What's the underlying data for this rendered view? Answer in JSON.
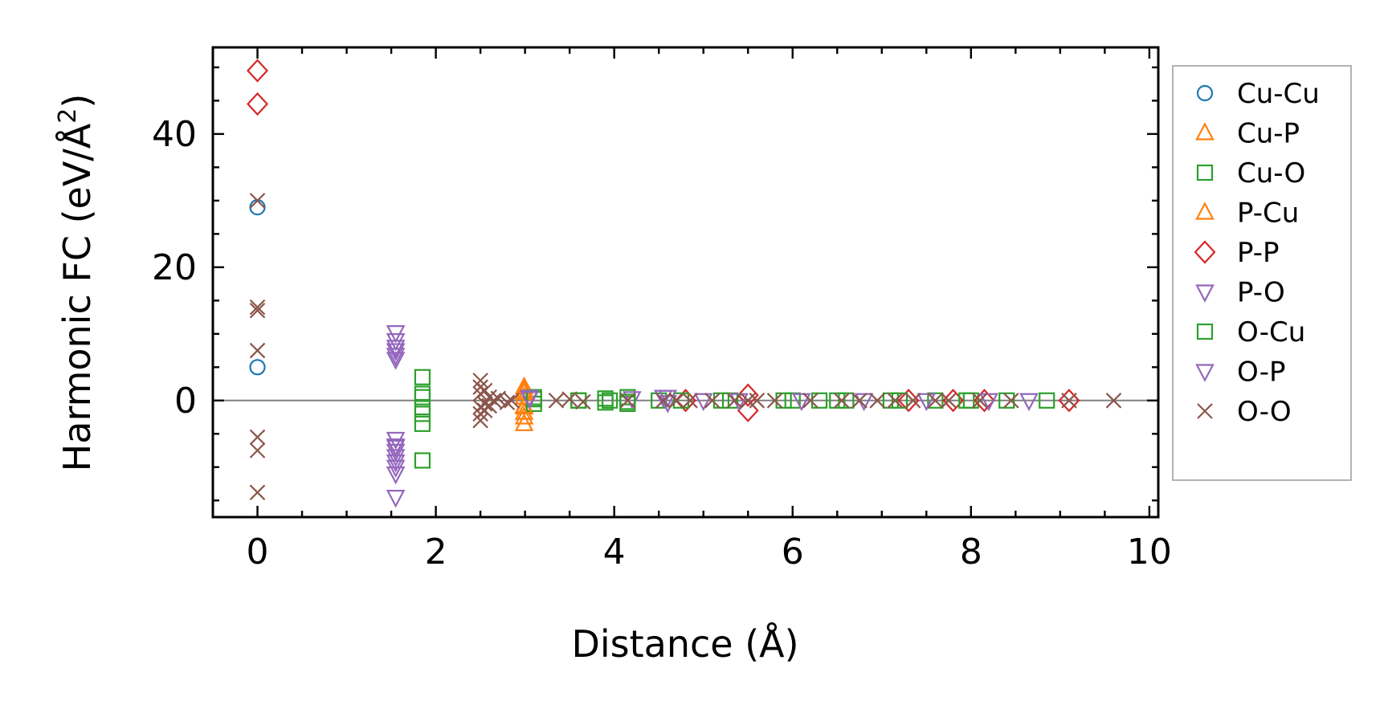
{
  "chart_data": {
    "type": "scatter",
    "xlabel": "Distance (Å)",
    "ylabel_main": "Harmonic FC (eV/Å",
    "ylabel_sup": "2",
    "ylabel_end": ")",
    "xlim": [
      -0.5,
      10.1
    ],
    "ylim": [
      -17.5,
      53
    ],
    "xticks": [
      0,
      2,
      4,
      6,
      8,
      10
    ],
    "yticks": [
      0,
      20,
      40
    ],
    "zero_line": true,
    "legend_position": "right, outside plot",
    "series": [
      {
        "name": "Cu-Cu",
        "color": "#1f77b4",
        "marker": "circle",
        "x": [
          0,
          0
        ],
        "y": [
          29,
          5
        ]
      },
      {
        "name": "Cu-P",
        "color": "#ff7f0e",
        "marker": "triangle-up",
        "x": [
          2.99,
          2.99,
          2.99,
          2.99,
          2.99,
          2.99
        ],
        "y": [
          2.0,
          1.2,
          0.5,
          -0.8,
          -1.8,
          -3.5
        ]
      },
      {
        "name": "Cu-O",
        "color": "#2ca02c",
        "marker": "square",
        "x": [
          1.85,
          1.85,
          1.85,
          1.85,
          1.85,
          3.1,
          3.1,
          3.6,
          3.9,
          3.9,
          4.15,
          4.15,
          4.5,
          5.2,
          5.9,
          6.3,
          6.6,
          7.1,
          7.6,
          8.0,
          8.4,
          8.85
        ],
        "y": [
          3.5,
          1.0,
          -1.0,
          -3.5,
          -9.0,
          0.5,
          -0.5,
          0,
          0.3,
          -0.3,
          0.5,
          -0.5,
          0,
          0,
          0,
          0,
          0,
          0,
          0,
          0,
          0,
          0
        ]
      },
      {
        "name": "P-Cu",
        "color": "#ff7f0e",
        "marker": "triangle-up",
        "x": [
          2.99,
          2.99,
          2.99
        ],
        "y": [
          1.5,
          -1.0,
          -2.5
        ]
      },
      {
        "name": "P-P",
        "color": "#d62728",
        "marker": "diamond",
        "x": [
          0,
          0,
          4.8,
          5.5,
          5.5,
          7.3,
          7.8,
          8.15,
          9.1
        ],
        "y": [
          49.5,
          44.5,
          0,
          0.8,
          -1.5,
          0,
          0,
          0,
          0
        ]
      },
      {
        "name": "P-O",
        "color": "#9467bd",
        "marker": "triangle-down",
        "x": [
          1.55,
          1.55,
          1.55,
          1.55,
          1.55,
          1.55,
          1.55,
          1.55,
          1.55,
          1.55,
          1.55,
          1.55,
          1.55,
          3.05,
          4.2,
          4.55,
          4.6
        ],
        "y": [
          10.2,
          9.0,
          7.5,
          6.8,
          6.2,
          -5.8,
          -6.8,
          -7.6,
          -8.4,
          -9.2,
          -10.0,
          -11.0,
          -14.5,
          0.5,
          0.3,
          0.5,
          -0.3
        ]
      },
      {
        "name": "O-Cu",
        "color": "#2ca02c",
        "marker": "square",
        "x": [
          1.85,
          1.85,
          3.1,
          3.6,
          3.95,
          4.15,
          4.75,
          5.3,
          6.0,
          6.5,
          7.2,
          7.95
        ],
        "y": [
          0.5,
          -2.0,
          0.2,
          0,
          0,
          -0.2,
          0,
          0,
          0,
          0,
          0,
          0
        ]
      },
      {
        "name": "O-P",
        "color": "#9467bd",
        "marker": "triangle-down",
        "x": [
          1.55,
          1.55,
          3.05,
          4.6,
          5.0,
          5.4,
          6.1,
          6.8,
          7.5,
          8.2,
          8.65
        ],
        "y": [
          8.0,
          -7.0,
          0.3,
          0.5,
          0,
          0,
          0,
          0,
          0,
          0,
          0
        ]
      },
      {
        "name": "O-O",
        "color": "#8c564b",
        "marker": "x",
        "x": [
          0,
          0,
          0,
          0,
          0,
          0,
          0,
          2.5,
          2.5,
          2.5,
          2.5,
          2.5,
          2.5,
          2.55,
          2.55,
          2.55,
          2.6,
          2.6,
          2.65,
          2.7,
          2.8,
          2.85,
          3.35,
          3.5,
          3.65,
          4.15,
          4.55,
          4.7,
          4.85,
          5.1,
          5.35,
          5.5,
          5.6,
          5.8,
          6.2,
          6.55,
          6.75,
          6.95,
          7.15,
          7.35,
          7.6,
          7.75,
          8.1,
          8.45,
          9.1,
          9.6
        ],
        "y": [
          30,
          14,
          13.5,
          7.5,
          -5.5,
          -7.5,
          -13.8,
          3.0,
          2.0,
          1.0,
          -1.0,
          -2.0,
          -3.0,
          1.5,
          -0.5,
          -1.5,
          0.5,
          -0.8,
          0,
          0.3,
          -0.3,
          0,
          0,
          0.2,
          -0.2,
          0,
          0,
          0,
          0,
          0,
          0,
          0,
          0,
          0,
          0,
          0,
          0,
          0,
          0,
          0,
          0,
          0,
          0,
          0,
          0,
          0
        ]
      }
    ]
  }
}
